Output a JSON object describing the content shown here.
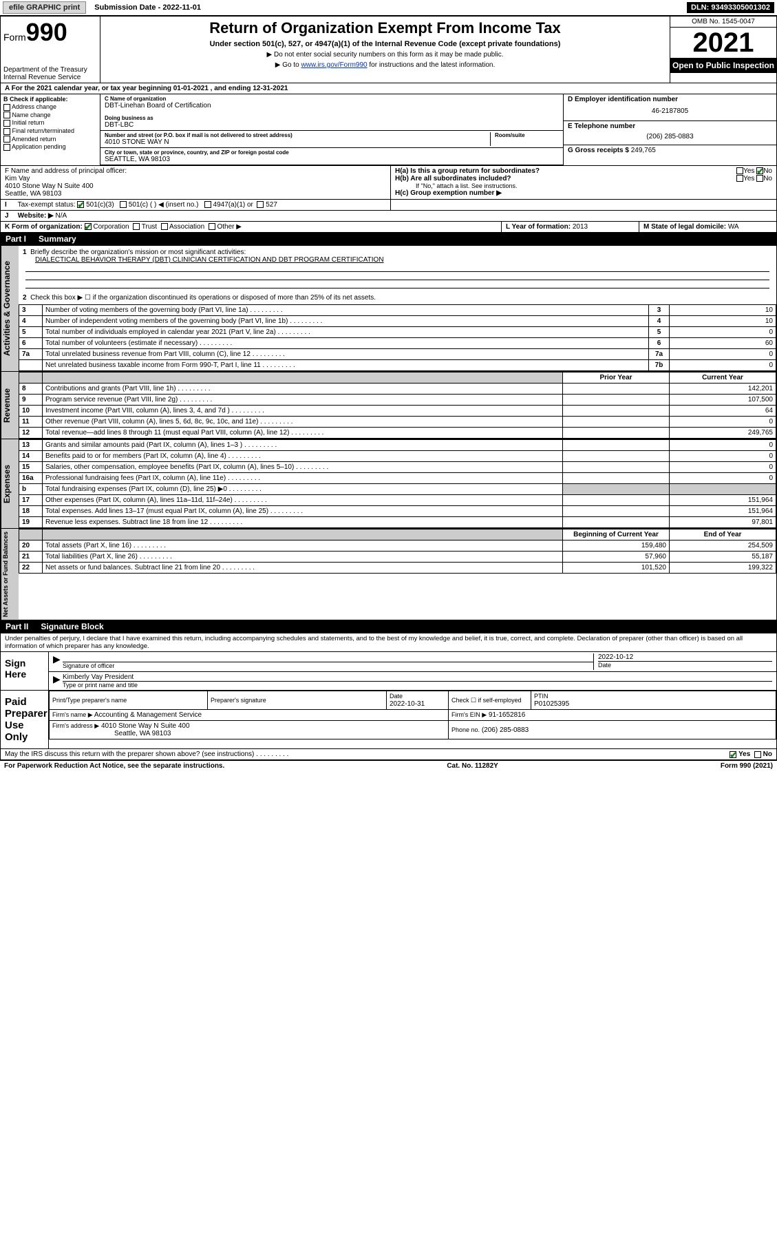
{
  "topbar": {
    "efile": "efile GRAPHIC print",
    "submission_label": "Submission Date - 2022-11-01",
    "dln": "DLN: 93493305001302"
  },
  "header": {
    "form_prefix": "Form",
    "form_number": "990",
    "dept": "Department of the Treasury",
    "irs": "Internal Revenue Service",
    "title": "Return of Organization Exempt From Income Tax",
    "subtitle": "Under section 501(c), 527, or 4947(a)(1) of the Internal Revenue Code (except private foundations)",
    "note1": "▶ Do not enter social security numbers on this form as it may be made public.",
    "note2_pre": "▶ Go to ",
    "note2_link": "www.irs.gov/Form990",
    "note2_post": " for instructions and the latest information.",
    "omb": "OMB No. 1545-0047",
    "year": "2021",
    "open": "Open to Public Inspection"
  },
  "section_a": {
    "a_line": "A For the 2021 calendar year, or tax year beginning 01-01-2021   , and ending 12-31-2021",
    "b_title": "B Check if applicable:",
    "b_items": [
      "Address change",
      "Name change",
      "Initial return",
      "Final return/terminated",
      "Amended return",
      "Application pending"
    ],
    "c_label": "C Name of organization",
    "c_name": "DBT-Linehan Board of Certification",
    "dba_label": "Doing business as",
    "dba": "DBT-LBC",
    "addr_label": "Number and street (or P.O. box if mail is not delivered to street address)",
    "room_label": "Room/suite",
    "addr": "4010 STONE WAY N",
    "city_label": "City or town, state or province, country, and ZIP or foreign postal code",
    "city": "SEATTLE, WA  98103",
    "d_label": "D Employer identification number",
    "d_val": "46-2187805",
    "e_label": "E Telephone number",
    "e_val": "(206) 285-0883",
    "g_label": "G Gross receipts $",
    "g_val": "249,765",
    "f_label": "F  Name and address of principal officer:",
    "f_name": "Kim Vay",
    "f_addr1": "4010 Stone Way N Suite 400",
    "f_addr2": "Seattle, WA  98103",
    "ha_label": "H(a)  Is this a group return for subordinates?",
    "hb_label": "H(b)  Are all subordinates included?",
    "hb_note": "If \"No,\" attach a list. See instructions.",
    "hc_label": "H(c)  Group exemption number ▶",
    "yes": "Yes",
    "no": "No",
    "i_label": "Tax-exempt status:",
    "i_501c3": "501(c)(3)",
    "i_501c": "501(c) (   ) ◀ (insert no.)",
    "i_4947": "4947(a)(1) or",
    "i_527": "527",
    "j_label": "Website: ▶",
    "j_val": "N/A",
    "k_label": "K Form of organization:",
    "k_corp": "Corporation",
    "k_trust": "Trust",
    "k_assoc": "Association",
    "k_other": "Other ▶",
    "l_label": "L Year of formation:",
    "l_val": "2013",
    "m_label": "M State of legal domicile:",
    "m_val": "WA"
  },
  "part1": {
    "hdr_num": "Part I",
    "hdr_txt": "Summary",
    "l1": "Briefly describe the organization's mission or most significant activities:",
    "l1_val": "DIALECTICAL BEHAVIOR THERAPY (DBT) CLINICIAN CERTIFICATION AND DBT PROGRAM CERTIFICATION",
    "l2": "Check this box ▶ ☐  if the organization discontinued its operations or disposed of more than 25% of its net assets.",
    "rows_gov": [
      {
        "n": "3",
        "d": "Number of voting members of the governing body (Part VI, line 1a)",
        "box": "3",
        "v": "10"
      },
      {
        "n": "4",
        "d": "Number of independent voting members of the governing body (Part VI, line 1b)",
        "box": "4",
        "v": "10"
      },
      {
        "n": "5",
        "d": "Total number of individuals employed in calendar year 2021 (Part V, line 2a)",
        "box": "5",
        "v": "0"
      },
      {
        "n": "6",
        "d": "Total number of volunteers (estimate if necessary)",
        "box": "6",
        "v": "60"
      },
      {
        "n": "7a",
        "d": "Total unrelated business revenue from Part VIII, column (C), line 12",
        "box": "7a",
        "v": "0"
      },
      {
        "n": "",
        "d": "Net unrelated business taxable income from Form 990-T, Part I, line 11",
        "box": "7b",
        "v": "0"
      }
    ],
    "col_prior": "Prior Year",
    "col_curr": "Current Year",
    "rows_rev": [
      {
        "n": "8",
        "d": "Contributions and grants (Part VIII, line 1h)",
        "p": "",
        "c": "142,201"
      },
      {
        "n": "9",
        "d": "Program service revenue (Part VIII, line 2g)",
        "p": "",
        "c": "107,500"
      },
      {
        "n": "10",
        "d": "Investment income (Part VIII, column (A), lines 3, 4, and 7d )",
        "p": "",
        "c": "64"
      },
      {
        "n": "11",
        "d": "Other revenue (Part VIII, column (A), lines 5, 6d, 8c, 9c, 10c, and 11e)",
        "p": "",
        "c": "0"
      },
      {
        "n": "12",
        "d": "Total revenue—add lines 8 through 11 (must equal Part VIII, column (A), line 12)",
        "p": "",
        "c": "249,765"
      }
    ],
    "rows_exp": [
      {
        "n": "13",
        "d": "Grants and similar amounts paid (Part IX, column (A), lines 1–3 )",
        "p": "",
        "c": "0"
      },
      {
        "n": "14",
        "d": "Benefits paid to or for members (Part IX, column (A), line 4)",
        "p": "",
        "c": "0"
      },
      {
        "n": "15",
        "d": "Salaries, other compensation, employee benefits (Part IX, column (A), lines 5–10)",
        "p": "",
        "c": "0"
      },
      {
        "n": "16a",
        "d": "Professional fundraising fees (Part IX, column (A), line 11e)",
        "p": "",
        "c": "0"
      },
      {
        "n": "b",
        "d": "Total fundraising expenses (Part IX, column (D), line 25) ▶0",
        "p": "shade",
        "c": "shade"
      },
      {
        "n": "17",
        "d": "Other expenses (Part IX, column (A), lines 11a–11d, 11f–24e)",
        "p": "",
        "c": "151,964"
      },
      {
        "n": "18",
        "d": "Total expenses. Add lines 13–17 (must equal Part IX, column (A), line 25)",
        "p": "",
        "c": "151,964"
      },
      {
        "n": "19",
        "d": "Revenue less expenses. Subtract line 18 from line 12",
        "p": "",
        "c": "97,801"
      }
    ],
    "col_begin": "Beginning of Current Year",
    "col_end": "End of Year",
    "rows_net": [
      {
        "n": "20",
        "d": "Total assets (Part X, line 16)",
        "p": "159,480",
        "c": "254,509"
      },
      {
        "n": "21",
        "d": "Total liabilities (Part X, line 26)",
        "p": "57,960",
        "c": "55,187"
      },
      {
        "n": "22",
        "d": "Net assets or fund balances. Subtract line 21 from line 20",
        "p": "101,520",
        "c": "199,322"
      }
    ],
    "vlab_gov": "Activities & Governance",
    "vlab_rev": "Revenue",
    "vlab_exp": "Expenses",
    "vlab_net": "Net Assets or Fund Balances"
  },
  "part2": {
    "hdr_num": "Part II",
    "hdr_txt": "Signature Block",
    "decl": "Under penalties of perjury, I declare that I have examined this return, including accompanying schedules and statements, and to the best of my knowledge and belief, it is true, correct, and complete. Declaration of preparer (other than officer) is based on all information of which preparer has any knowledge.",
    "sign_here": "Sign Here",
    "sig_officer": "Signature of officer",
    "date_label": "Date",
    "date_val": "2022-10-12",
    "name_title": "Kimberly Vay  President",
    "name_title_lbl": "Type or print name and title",
    "paid": "Paid Preparer Use Only",
    "prep_name_lbl": "Print/Type preparer's name",
    "prep_sig_lbl": "Preparer's signature",
    "prep_date": "2022-10-31",
    "check_self": "Check ☐ if self-employed",
    "ptin_lbl": "PTIN",
    "ptin": "P01025395",
    "firm_name_lbl": "Firm's name    ▶",
    "firm_name": "Accounting & Management Service",
    "firm_ein_lbl": "Firm's EIN ▶",
    "firm_ein": "91-1652816",
    "firm_addr_lbl": "Firm's address ▶",
    "firm_addr1": "4010 Stone Way N Suite 400",
    "firm_addr2": "Seattle, WA  98103",
    "phone_lbl": "Phone no.",
    "phone": "(206) 285-0883",
    "discuss": "May the IRS discuss this return with the preparer shown above? (see instructions)"
  },
  "footer": {
    "left": "For Paperwork Reduction Act Notice, see the separate instructions.",
    "mid": "Cat. No. 11282Y",
    "right": "Form 990 (2021)"
  },
  "colors": {
    "link": "#0033cc",
    "check_green": "#1a7f1a",
    "shade": "#cccccc"
  }
}
